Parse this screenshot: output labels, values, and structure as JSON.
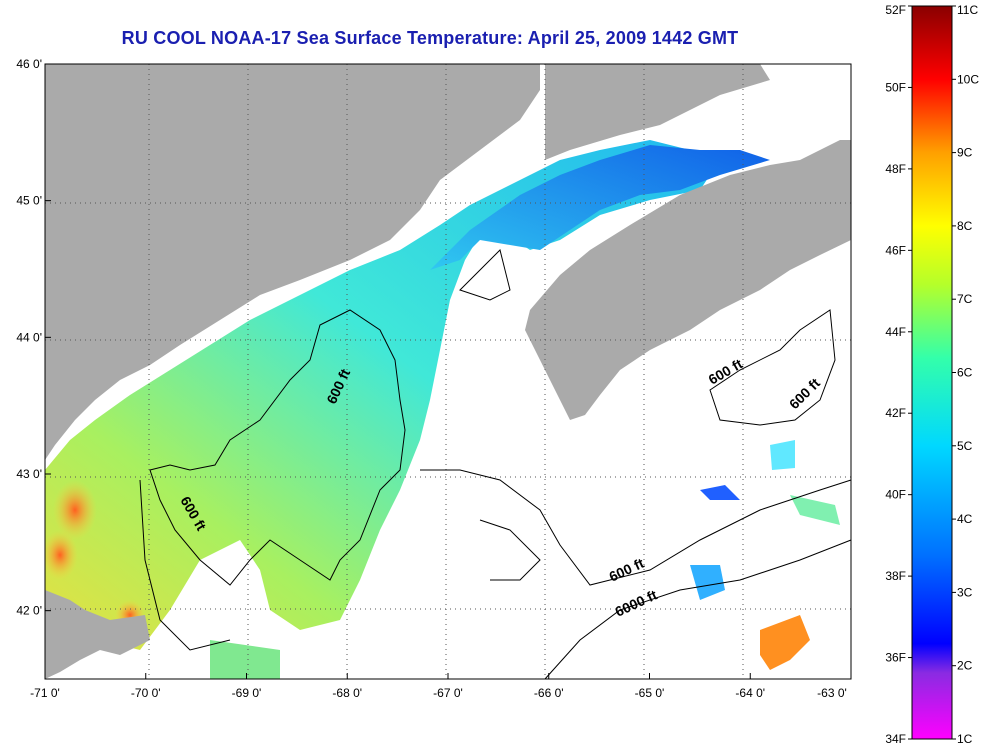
{
  "title": "RU COOL  NOAA-17  Sea Surface Temperature:  April 25, 2009 1442 GMT",
  "chart_data": {
    "type": "heatmap",
    "title": "RU COOL  NOAA-17  Sea Surface Temperature:  April 25, 2009 1442 GMT",
    "xlim": [
      -71,
      -63
    ],
    "ylim": [
      41.5,
      46
    ],
    "x_ticks": [
      -71,
      -70,
      -69,
      -68,
      -67,
      -66,
      -65,
      -64,
      -63
    ],
    "y_ticks": [
      42,
      43,
      44,
      45,
      46
    ],
    "x_tick_labels": [
      "-71 0'",
      "-70 0'",
      "-69 0'",
      "-68 0'",
      "-67 0'",
      "-66 0'",
      "-65 0'",
      "-64 0'",
      "-63 0'"
    ],
    "y_tick_labels": [
      "42 0'",
      "43 0'",
      "44 0'",
      "45 0'",
      "46 0'"
    ],
    "grid": true,
    "contours": [
      {
        "label": "600 ft",
        "lon": -70.45,
        "lat": 42.85
      },
      {
        "label": "600 ft",
        "lon": -67.8,
        "lat": 43.7
      },
      {
        "label": "600 ft",
        "lon": -64.1,
        "lat": 43.78
      },
      {
        "label": "600 ft",
        "lon": -63.45,
        "lat": 43.55
      },
      {
        "label": "600 ft",
        "lon": -65.6,
        "lat": 42.3
      },
      {
        "label": "6000 ft",
        "lon": -65.3,
        "lat": 42.05
      }
    ],
    "colorbar": {
      "fahrenheit_labels": [
        "52F",
        "50F",
        "48F",
        "46F",
        "44F",
        "42F",
        "40F",
        "38F",
        "36F",
        "34F"
      ],
      "celsius_labels": [
        "11C",
        "10C",
        "9C",
        "8C",
        "7C",
        "6C",
        "5C",
        "4C",
        "3C",
        "2C",
        "1C"
      ],
      "range_f": [
        34,
        52
      ],
      "range_c": [
        1,
        11
      ]
    },
    "colors": {
      "land": "#aaaaaa",
      "no_data": "#ffffff",
      "title": "#1a1fb0"
    }
  }
}
